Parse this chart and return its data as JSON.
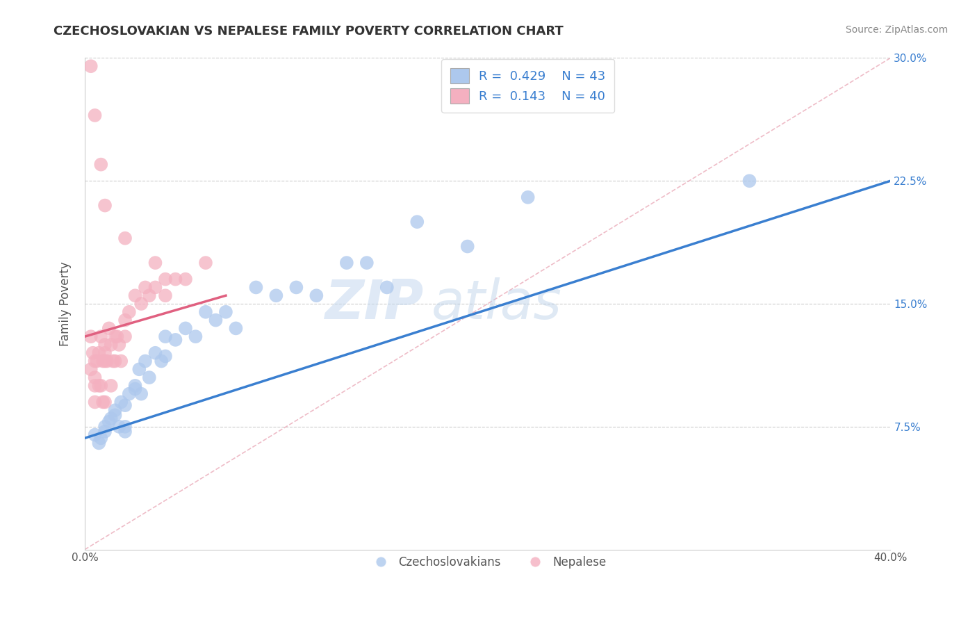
{
  "title": "CZECHOSLOVAKIAN VS NEPALESE FAMILY POVERTY CORRELATION CHART",
  "source": "Source: ZipAtlas.com",
  "ylabel": "Family Poverty",
  "xlim": [
    0.0,
    0.4
  ],
  "ylim": [
    0.0,
    0.3
  ],
  "ytick_labels": [
    "7.5%",
    "15.0%",
    "22.5%",
    "30.0%"
  ],
  "ytick_positions": [
    0.075,
    0.15,
    0.225,
    0.3
  ],
  "grid_color": "#cccccc",
  "background_color": "#ffffff",
  "czech_color": "#adc8ed",
  "nepal_color": "#f4b0c0",
  "czech_line_color": "#3a7fd0",
  "nepal_line_color": "#e06080",
  "R_czech": 0.429,
  "N_czech": 43,
  "R_nepal": 0.143,
  "N_nepal": 40,
  "watermark_zip": "ZIP",
  "watermark_atlas": "atlas",
  "czech_x": [
    0.005,
    0.007,
    0.008,
    0.01,
    0.01,
    0.012,
    0.013,
    0.015,
    0.015,
    0.017,
    0.018,
    0.02,
    0.02,
    0.02,
    0.022,
    0.025,
    0.025,
    0.027,
    0.028,
    0.03,
    0.032,
    0.035,
    0.038,
    0.04,
    0.04,
    0.045,
    0.05,
    0.055,
    0.06,
    0.065,
    0.07,
    0.075,
    0.085,
    0.095,
    0.105,
    0.115,
    0.13,
    0.14,
    0.15,
    0.165,
    0.19,
    0.22,
    0.33
  ],
  "czech_y": [
    0.07,
    0.065,
    0.068,
    0.075,
    0.072,
    0.078,
    0.08,
    0.085,
    0.082,
    0.075,
    0.09,
    0.088,
    0.075,
    0.072,
    0.095,
    0.1,
    0.098,
    0.11,
    0.095,
    0.115,
    0.105,
    0.12,
    0.115,
    0.13,
    0.118,
    0.128,
    0.135,
    0.13,
    0.145,
    0.14,
    0.145,
    0.135,
    0.16,
    0.155,
    0.16,
    0.155,
    0.175,
    0.175,
    0.16,
    0.2,
    0.185,
    0.215,
    0.225
  ],
  "nepal_x": [
    0.003,
    0.003,
    0.004,
    0.005,
    0.005,
    0.005,
    0.005,
    0.006,
    0.007,
    0.007,
    0.008,
    0.008,
    0.009,
    0.009,
    0.01,
    0.01,
    0.01,
    0.01,
    0.011,
    0.012,
    0.013,
    0.013,
    0.014,
    0.015,
    0.015,
    0.016,
    0.017,
    0.018,
    0.02,
    0.02,
    0.022,
    0.025,
    0.028,
    0.03,
    0.032,
    0.035,
    0.04,
    0.045,
    0.05,
    0.06
  ],
  "nepal_y": [
    0.13,
    0.11,
    0.12,
    0.105,
    0.115,
    0.1,
    0.09,
    0.115,
    0.12,
    0.1,
    0.13,
    0.1,
    0.115,
    0.09,
    0.125,
    0.12,
    0.115,
    0.09,
    0.115,
    0.135,
    0.125,
    0.1,
    0.115,
    0.13,
    0.115,
    0.13,
    0.125,
    0.115,
    0.14,
    0.13,
    0.145,
    0.155,
    0.15,
    0.16,
    0.155,
    0.16,
    0.155,
    0.165,
    0.165,
    0.175
  ],
  "nepal_outliers_x": [
    0.003,
    0.005,
    0.008,
    0.01,
    0.02,
    0.035,
    0.04
  ],
  "nepal_outliers_y": [
    0.295,
    0.265,
    0.235,
    0.21,
    0.19,
    0.175,
    0.165
  ],
  "czech_line_x": [
    0.0,
    0.4
  ],
  "czech_line_y": [
    0.068,
    0.225
  ],
  "nepal_line_x": [
    0.0,
    0.07
  ],
  "nepal_line_y": [
    0.13,
    0.155
  ]
}
